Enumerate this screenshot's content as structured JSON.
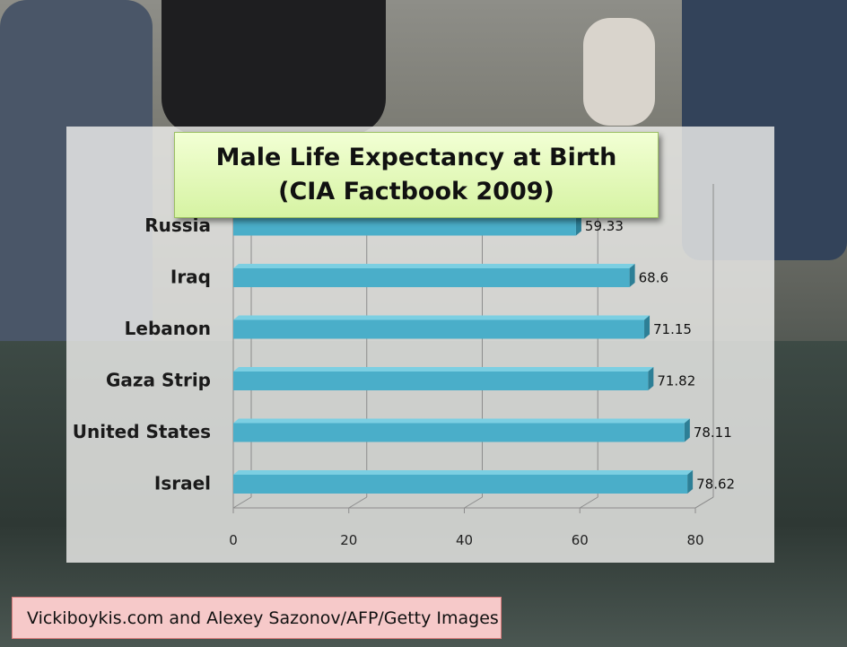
{
  "colors": {
    "bar_front": "#4aaec9",
    "bar_top": "#7ccfe2",
    "bar_end": "#2d7f96",
    "title_bg": "#d6f3a3",
    "credit_bg": "#f6c9c9"
  },
  "credit": "Vickiboykis.com and Alexey Sazonov/AFP/Getty Images",
  "chart_data": {
    "type": "bar",
    "orientation": "horizontal",
    "title": "Male Life Expectancy at Birth (CIA Factbook 2009)",
    "categories": [
      "Russia",
      "Iraq",
      "Lebanon",
      "Gaza Strip",
      "United States",
      "Israel"
    ],
    "values": [
      59.33,
      68.6,
      71.15,
      71.82,
      78.11,
      78.62
    ],
    "value_labels": [
      "59.33",
      "68.6",
      "71.15",
      "71.82",
      "78.11",
      "78.62"
    ],
    "xlim": [
      0,
      80
    ],
    "xticks": [
      0,
      20,
      40,
      60,
      80
    ],
    "grid": true,
    "legend": "none"
  }
}
